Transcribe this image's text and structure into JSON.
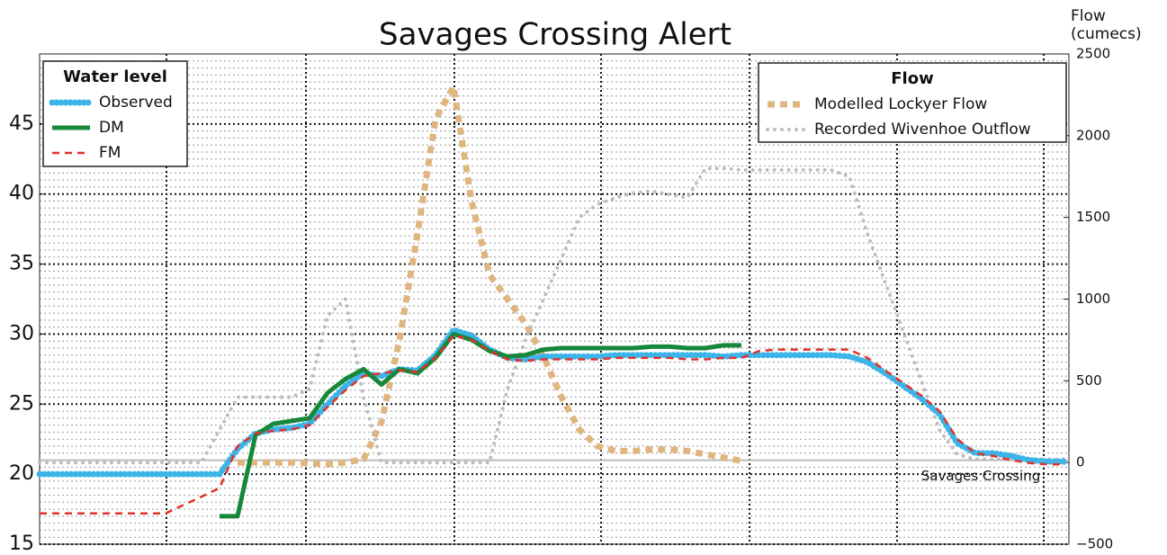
{
  "chart_data": {
    "type": "line",
    "title": "Savages Crossing Alert",
    "y2label": "Flow (cumecs)",
    "categories": [
      null,
      null,
      null,
      null,
      null,
      null,
      null,
      null,
      null,
      null,
      null,
      null,
      null,
      null,
      null,
      null,
      null,
      null,
      null,
      null,
      null,
      null,
      null,
      null,
      null,
      null,
      null,
      null,
      null,
      null,
      null,
      null,
      null,
      null,
      null,
      null,
      null,
      null,
      null,
      null,
      null,
      null,
      null,
      null,
      null,
      null,
      null,
      null,
      null,
      null,
      null,
      null,
      null,
      null,
      null,
      null,
      null,
      null
    ],
    "ylim": [
      15,
      50
    ],
    "yticks": [
      15,
      20,
      25,
      30,
      35,
      40,
      45
    ],
    "y2lim": [
      -500,
      2500
    ],
    "y2ticks": [
      {
        "value": -500,
        "label": "−500"
      },
      0,
      500,
      1000,
      1500,
      2000,
      2500
    ],
    "grid": true,
    "legend_title": "Water level",
    "legend_position": "upper left",
    "legend2_title": "Flow",
    "legend2_position": "upper right",
    "annotation": {
      "text": "Savages Crossing",
      "value": 21
    },
    "series": [
      {
        "name": "Observed",
        "color": "#3cb4e7",
        "style": "dotted",
        "values": [
          20.0,
          20.0,
          20.0,
          20.0,
          20.0,
          20.0,
          20.0,
          20.0,
          20.0,
          20.0,
          20.0,
          21.8,
          22.9,
          23.2,
          23.3,
          23.6,
          25.0,
          26.3,
          27.2,
          27.0,
          27.5,
          27.4,
          28.5,
          30.3,
          29.9,
          28.9,
          28.3,
          28.2,
          28.4,
          28.4,
          28.4,
          28.4,
          28.5,
          28.5,
          28.5,
          28.5,
          28.5,
          28.5,
          28.4,
          28.5,
          28.5,
          28.5,
          28.5,
          28.5,
          28.5,
          28.4,
          28.0,
          27.2,
          26.3,
          25.4,
          24.3,
          22.2,
          21.5,
          21.5,
          21.3,
          21.0,
          20.9,
          20.9
        ]
      },
      {
        "name": "DM",
        "color": "#17873a",
        "style": "solid",
        "values": [
          null,
          null,
          null,
          null,
          null,
          null,
          null,
          null,
          null,
          null,
          17.0,
          17.0,
          22.8,
          23.6,
          23.8,
          24.0,
          25.8,
          26.8,
          27.5,
          26.4,
          27.5,
          27.2,
          28.3,
          30.0,
          29.6,
          28.8,
          28.4,
          28.5,
          28.9,
          29.0,
          29.0,
          29.0,
          29.0,
          29.0,
          29.1,
          29.1,
          29.0,
          29.0,
          29.2,
          29.2,
          null,
          null,
          null,
          null,
          null,
          null,
          null,
          null,
          null,
          null,
          null,
          null,
          null,
          null,
          null,
          null,
          null,
          null
        ]
      },
      {
        "name": "FM",
        "color": "#e3312b",
        "style": "dashed",
        "values": [
          17.2,
          17.2,
          17.2,
          17.2,
          17.2,
          17.2,
          17.2,
          17.2,
          17.8,
          18.4,
          19.0,
          22.0,
          22.9,
          23.1,
          23.2,
          23.5,
          24.8,
          26.0,
          27.0,
          27.2,
          27.4,
          27.3,
          28.3,
          29.9,
          29.6,
          28.8,
          28.2,
          28.1,
          28.2,
          28.2,
          28.2,
          28.2,
          28.3,
          28.3,
          28.3,
          28.3,
          28.2,
          28.2,
          28.3,
          28.3,
          28.8,
          28.9,
          28.9,
          28.9,
          28.9,
          28.9,
          28.3,
          27.4,
          26.5,
          25.6,
          24.5,
          22.5,
          21.5,
          21.3,
          21.0,
          20.8,
          20.7,
          20.7
        ]
      },
      {
        "name": "Modelled Lockyer Flow",
        "color": "#dfb680",
        "style": "thickdash",
        "axis": "y2",
        "values": [
          null,
          null,
          null,
          null,
          null,
          null,
          null,
          null,
          null,
          null,
          null,
          0,
          0,
          0,
          0,
          -5,
          -10,
          0,
          20,
          250,
          750,
          1400,
          2100,
          2300,
          1600,
          1150,
          1000,
          850,
          650,
          400,
          200,
          100,
          70,
          70,
          80,
          80,
          70,
          50,
          30,
          10,
          null,
          null,
          null,
          null,
          null,
          null,
          null,
          null,
          null,
          null,
          null,
          null,
          null,
          null,
          null,
          null,
          null,
          null
        ]
      },
      {
        "name": "Recorded Wivenhoe Outflow",
        "color": "#bdbdbd",
        "style": "dotted",
        "axis": "y2",
        "values": [
          0,
          0,
          0,
          0,
          0,
          0,
          0,
          0,
          0,
          0,
          200,
          400,
          400,
          400,
          400,
          450,
          900,
          1000,
          400,
          0,
          0,
          0,
          0,
          0,
          0,
          0,
          450,
          750,
          1000,
          1250,
          1500,
          1580,
          1620,
          1650,
          1660,
          1640,
          1620,
          1800,
          1800,
          1790,
          1790,
          1790,
          1790,
          1790,
          1790,
          1750,
          1400,
          1100,
          800,
          500,
          200,
          50,
          20,
          20,
          20,
          20,
          20,
          20
        ]
      }
    ]
  }
}
